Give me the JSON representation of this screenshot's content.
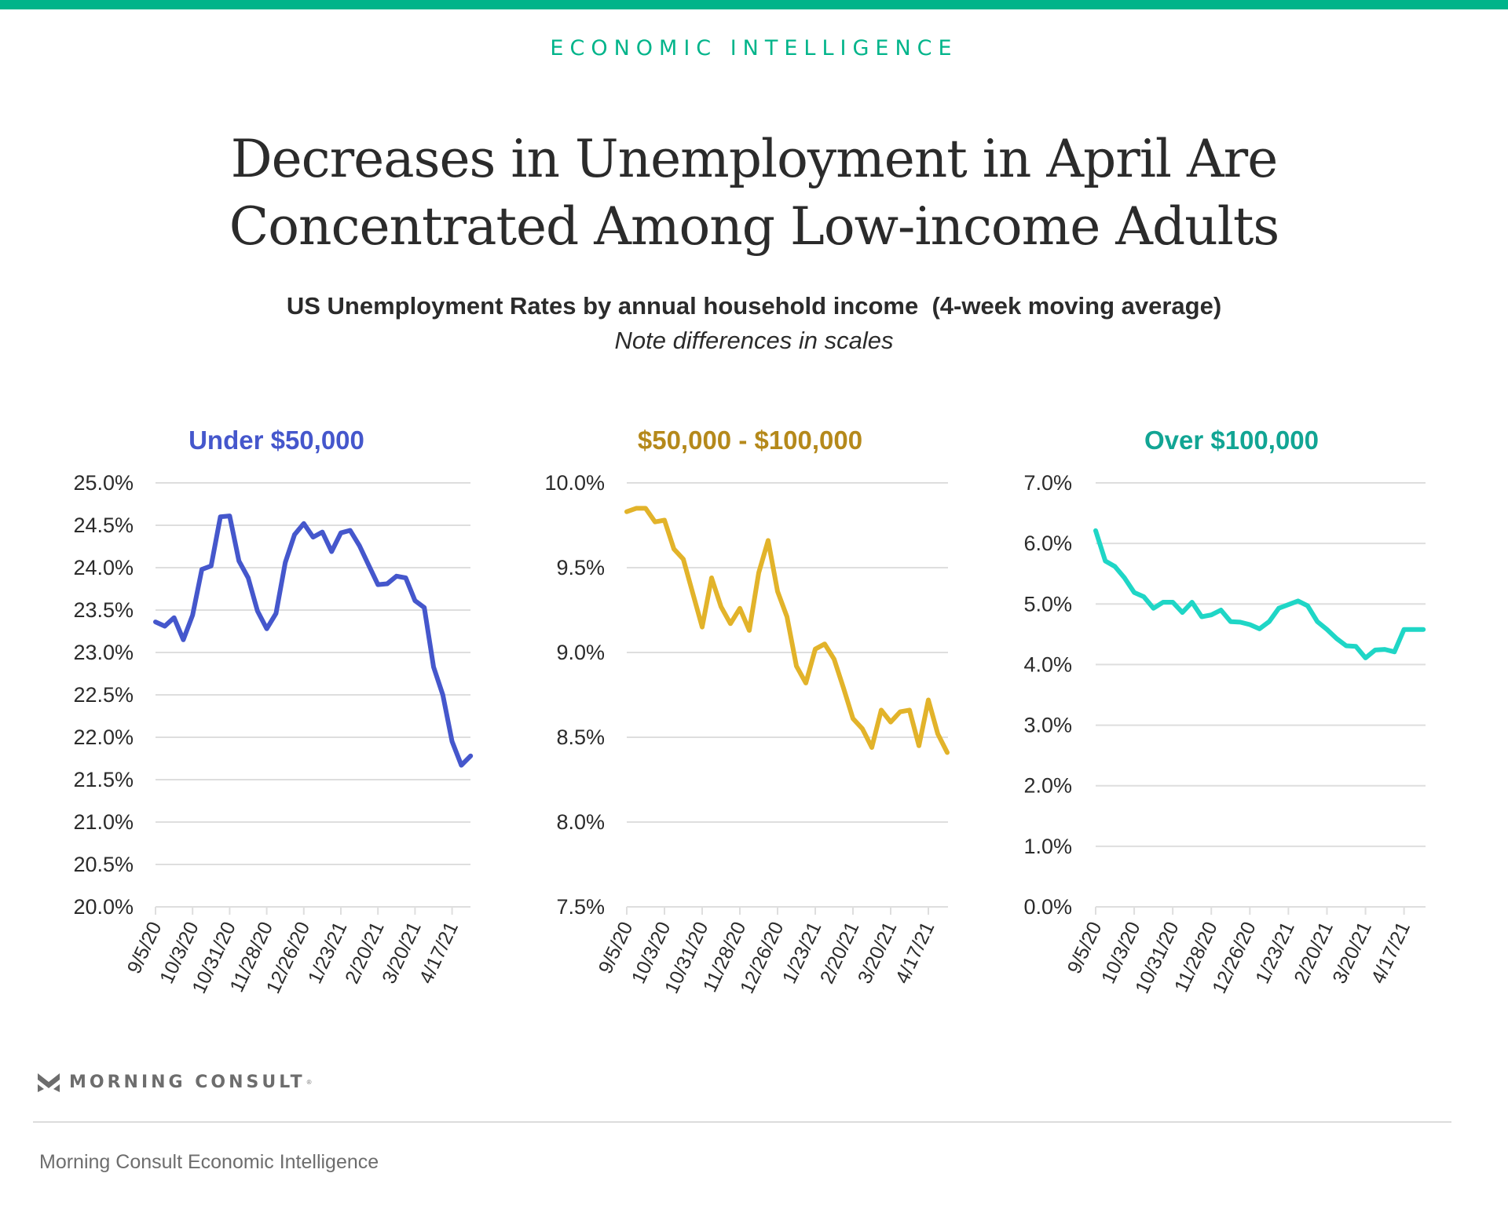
{
  "header": {
    "kicker": "ECONOMIC INTELLIGENCE",
    "title_line1": "Decreases in Unemployment in April Are",
    "title_line2": "Concentrated Among Low-income Adults",
    "subtitle": "US Unemployment Rates by annual household income  (4-week moving average)",
    "note": "Note differences in scales"
  },
  "colors": {
    "brand": "#00b48a",
    "gridline": "#dedede",
    "text": "#2b2b2b"
  },
  "footer": {
    "logo_text": "MORNING CONSULT",
    "logo_reg": "®",
    "source": "Morning Consult Economic Intelligence"
  },
  "chart_data": [
    {
      "type": "line",
      "title": "Under $50,000",
      "title_color": "#4557cc",
      "line_color": "#4557cc",
      "xlabel": "",
      "ylabel": "",
      "ylim": [
        20.0,
        25.0
      ],
      "ytick_step": 0.5,
      "ytick_labels": [
        "20.0%",
        "20.5%",
        "21.0%",
        "21.5%",
        "22.0%",
        "22.5%",
        "23.0%",
        "23.5%",
        "24.0%",
        "24.5%",
        "25.0%"
      ],
      "xtick_labels": [
        "9/5/20",
        "10/3/20",
        "10/31/20",
        "11/28/20",
        "12/26/20",
        "1/23/21",
        "2/20/21",
        "3/20/21",
        "4/17/21"
      ],
      "xtick_every_weeks": 4,
      "x_start": "9/5/20",
      "x_interval": "weekly",
      "grid": true,
      "values": [
        23.36,
        23.31,
        23.41,
        23.15,
        23.44,
        23.98,
        24.02,
        24.6,
        24.61,
        24.08,
        23.88,
        23.49,
        23.28,
        23.46,
        24.06,
        24.39,
        24.52,
        24.36,
        24.42,
        24.19,
        24.41,
        24.44,
        24.26,
        24.03,
        23.8,
        23.81,
        23.9,
        23.88,
        23.61,
        23.53,
        22.83,
        22.5,
        21.95,
        21.67,
        21.78
      ]
    },
    {
      "type": "line",
      "title": "$50,000 - $100,000",
      "title_color": "#b5891b",
      "line_color": "#e2b32a",
      "xlabel": "",
      "ylabel": "",
      "ylim": [
        7.5,
        10.0
      ],
      "ytick_step": 0.5,
      "ytick_labels": [
        "7.5%",
        "8.0%",
        "8.5%",
        "9.0%",
        "9.5%",
        "10.0%"
      ],
      "xtick_labels": [
        "9/5/20",
        "10/3/20",
        "10/31/20",
        "11/28/20",
        "12/26/20",
        "1/23/21",
        "2/20/21",
        "3/20/21",
        "4/17/21"
      ],
      "xtick_every_weeks": 4,
      "x_start": "9/5/20",
      "x_interval": "weekly",
      "grid": true,
      "values": [
        9.83,
        9.85,
        9.85,
        9.77,
        9.78,
        9.61,
        9.55,
        9.35,
        9.15,
        9.44,
        9.27,
        9.17,
        9.26,
        9.13,
        9.47,
        9.66,
        9.36,
        9.21,
        8.92,
        8.82,
        9.02,
        9.05,
        8.96,
        8.79,
        8.61,
        8.55,
        8.44,
        8.66,
        8.59,
        8.65,
        8.66,
        8.45,
        8.72,
        8.52,
        8.41
      ]
    },
    {
      "type": "line",
      "title": "Over $100,000",
      "title_color": "#12a594",
      "line_color": "#1fd6c6",
      "xlabel": "",
      "ylabel": "",
      "ylim": [
        0.0,
        7.0
      ],
      "ytick_step": 1.0,
      "ytick_labels": [
        "0.0%",
        "1.0%",
        "2.0%",
        "3.0%",
        "4.0%",
        "5.0%",
        "6.0%",
        "7.0%"
      ],
      "xtick_labels": [
        "9/5/20",
        "10/3/20",
        "10/31/20",
        "11/28/20",
        "12/26/20",
        "1/23/21",
        "2/20/21",
        "3/20/21",
        "4/17/21"
      ],
      "xtick_every_weeks": 4,
      "x_start": "9/5/20",
      "x_interval": "weekly",
      "grid": true,
      "values": [
        6.21,
        5.71,
        5.62,
        5.43,
        5.19,
        5.12,
        4.93,
        5.03,
        5.03,
        4.86,
        5.03,
        4.79,
        4.82,
        4.9,
        4.71,
        4.7,
        4.66,
        4.59,
        4.71,
        4.93,
        4.99,
        5.05,
        4.97,
        4.71,
        4.58,
        4.43,
        4.31,
        4.3,
        4.11,
        4.24,
        4.25,
        4.21,
        4.58,
        4.58,
        4.58
      ]
    }
  ]
}
